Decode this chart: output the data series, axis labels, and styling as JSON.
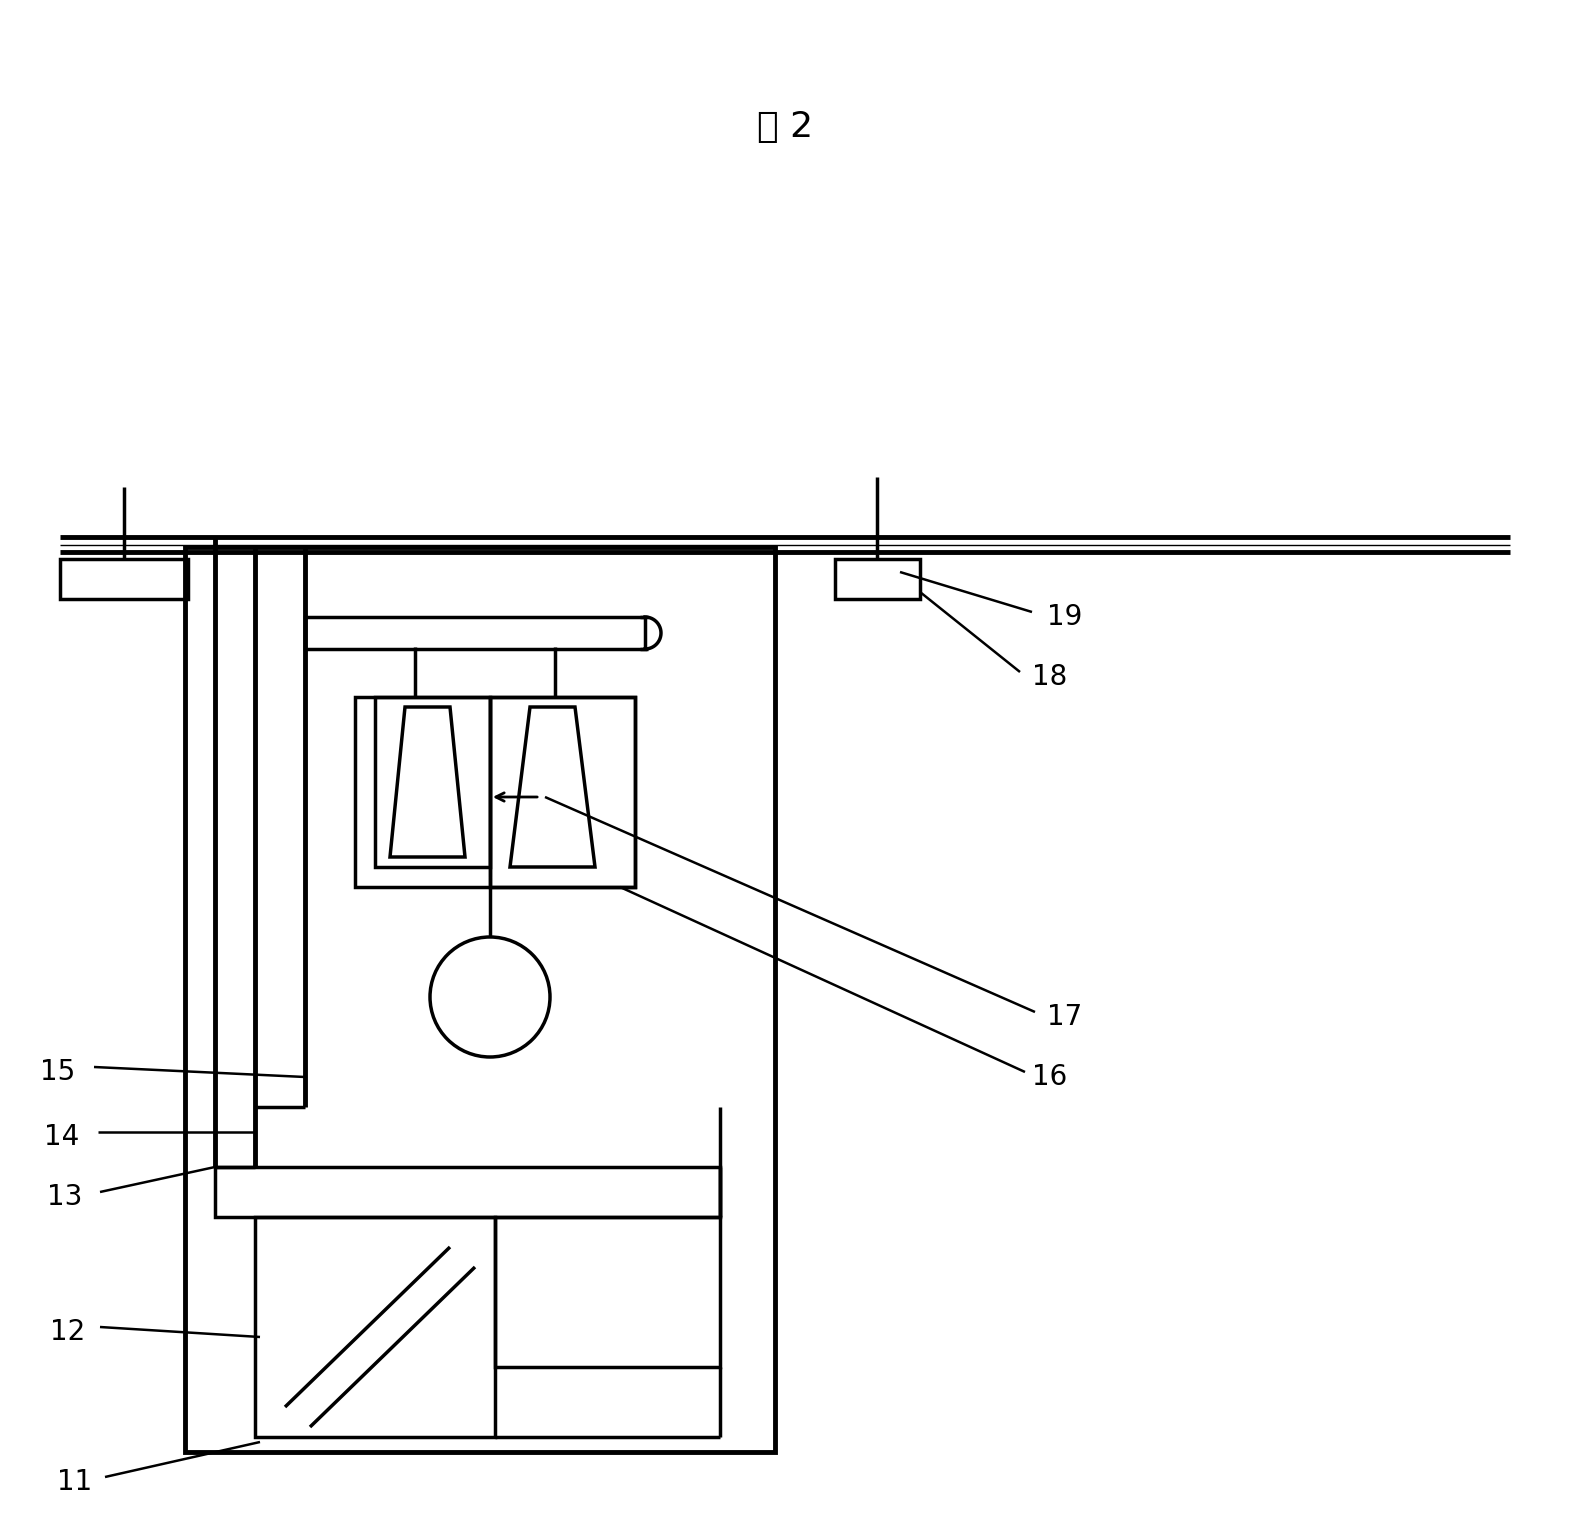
{
  "bg_color": "#ffffff",
  "line_color": "#000000",
  "title": "图 2",
  "title_fontsize": 26,
  "label_fontsize": 20
}
